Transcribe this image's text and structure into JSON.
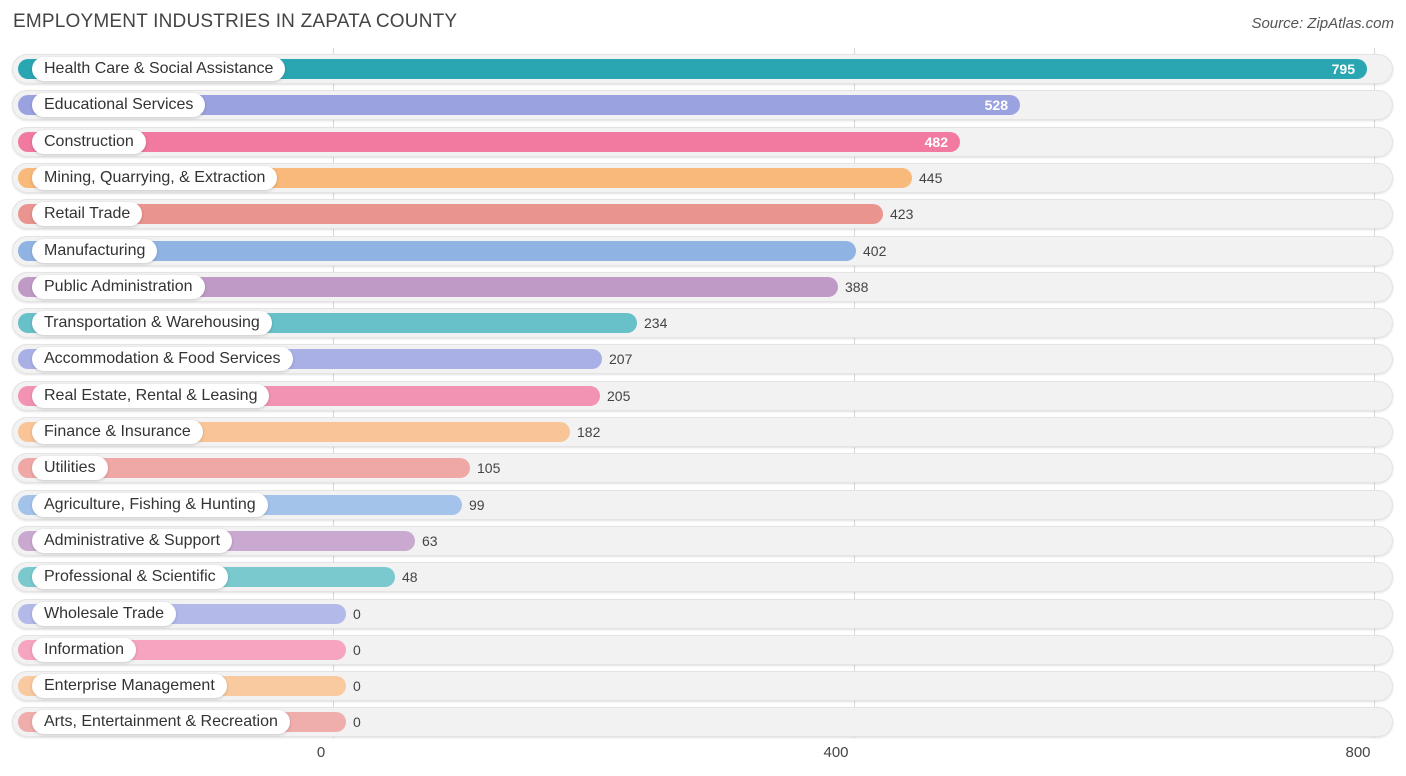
{
  "title": "EMPLOYMENT INDUSTRIES IN ZAPATA COUNTY",
  "source": "Source: ZipAtlas.com",
  "chart_data": {
    "type": "bar",
    "orientation": "horizontal",
    "title": "Employment Industries in Zapata County",
    "xlim": [
      0,
      800
    ],
    "xticks": [
      "0",
      "400",
      "800"
    ],
    "grid": true,
    "categories": [
      "Health Care & Social Assistance",
      "Educational Services",
      "Construction",
      "Mining, Quarrying, & Extraction",
      "Retail Trade",
      "Manufacturing",
      "Public Administration",
      "Transportation & Warehousing",
      "Accommodation & Food Services",
      "Real Estate, Rental & Leasing",
      "Finance & Insurance",
      "Utilities",
      "Agriculture, Fishing & Hunting",
      "Administrative & Support",
      "Professional & Scientific",
      "Wholesale Trade",
      "Information",
      "Enterprise Management",
      "Arts, Entertainment & Recreation"
    ],
    "values": [
      795,
      528,
      482,
      445,
      423,
      402,
      388,
      234,
      207,
      205,
      182,
      105,
      99,
      63,
      48,
      0,
      0,
      0,
      0
    ],
    "colors": [
      "#2aa6b3",
      "#9aa3e0",
      "#f279a0",
      "#f9b97a",
      "#ea9490",
      "#8fb3e3",
      "#bf9ac6",
      "#68c1c9",
      "#a9b0e6",
      "#f393b3",
      "#f9c597",
      "#efa8a6",
      "#a4c3eb",
      "#c9a9d0",
      "#79c9cf",
      "#b3baea",
      "#f7a4c0",
      "#f9ca9f",
      "#efaeac"
    ]
  }
}
